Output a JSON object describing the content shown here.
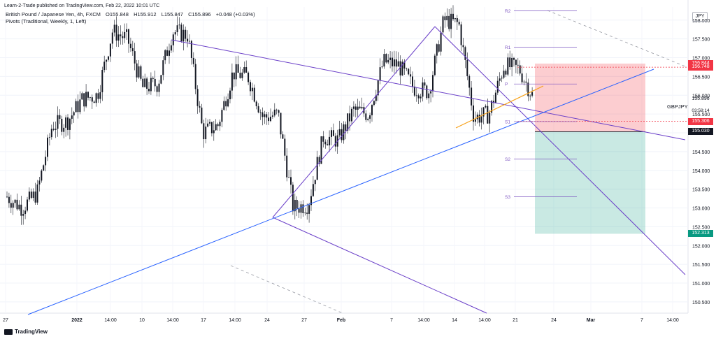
{
  "header": {
    "published_line": "Learn-2-Trade published on TradingView.com, Feb 22, 2022 10:01 UTC"
  },
  "legend": {
    "symbol": "British Pound / Japanese Yen, 4h, FXCM",
    "open": "O155.848",
    "high": "H155.912",
    "low": "L155.847",
    "close": "C155.896",
    "change": "+0.048 (+0.03%)",
    "indicator": "Pivots (Traditional, Weekly, 1, Left)"
  },
  "currency": "JPY",
  "footer": {
    "brand": "TradingView"
  },
  "chart_data": {
    "type": "candlestick",
    "symbol_label": "GBPJPY",
    "timer": "03:58:14",
    "y_axis": {
      "ticks": [
        158.0,
        157.5,
        157.0,
        156.5,
        156.0,
        155.5,
        155.0,
        154.5,
        154.0,
        153.5,
        153.0,
        152.5,
        152.0,
        151.5,
        151.0,
        150.5
      ],
      "tick_labels": [
        "158.000",
        "157.500",
        "157.000",
        "156.500",
        "156.000",
        "155.500",
        "155.000",
        "154.500",
        "154.000",
        "153.500",
        "153.000",
        "152.500",
        "152.000",
        "151.500",
        "151.000",
        "150.500"
      ],
      "range": [
        150.2,
        158.35
      ]
    },
    "x_axis": {
      "tick_labels": [
        "27",
        "2022",
        "14:00",
        "10",
        "14:00",
        "17",
        "14:00",
        "24",
        "27",
        "Feb",
        "7",
        "14:00",
        "14",
        "14:00",
        "21",
        "24",
        "Mar",
        "7",
        "14:00"
      ]
    },
    "price_labels": [
      {
        "value": "156.844",
        "color": "#f23645"
      },
      {
        "value": "156.748",
        "color": "#f23645"
      },
      {
        "value": "155.896",
        "color": "#131722"
      },
      {
        "value": "155.306",
        "color": "#f23645"
      },
      {
        "value": "155.030",
        "color": "#131722"
      },
      {
        "value": "152.313",
        "color": "#089981"
      }
    ],
    "pivot_labels": [
      "R2",
      "R1",
      "P",
      "S1",
      "S2",
      "S3"
    ],
    "pivot_values": [
      158.25,
      157.28,
      156.3,
      155.3,
      154.3,
      153.3
    ],
    "position": {
      "entry": 155.03,
      "stop": 156.844,
      "target": 152.313
    },
    "candle_seed": [
      [
        153.3,
        153.0
      ],
      [
        153.4,
        155.2
      ],
      [
        155.3,
        155.9
      ],
      [
        156.0,
        157.7
      ],
      [
        157.5,
        156.2
      ],
      [
        156.3,
        157.7
      ],
      [
        157.6,
        155.0
      ],
      [
        155.2,
        156.6
      ],
      [
        156.5,
        155.4
      ],
      [
        155.5,
        153.0
      ],
      [
        153.1,
        154.9
      ],
      [
        154.8,
        155.6
      ],
      [
        155.5,
        156.9
      ],
      [
        156.8,
        156.2
      ],
      [
        156.1,
        158.0
      ],
      [
        157.9,
        155.4
      ],
      [
        155.5,
        156.8
      ],
      [
        156.7,
        155.9
      ]
    ]
  }
}
